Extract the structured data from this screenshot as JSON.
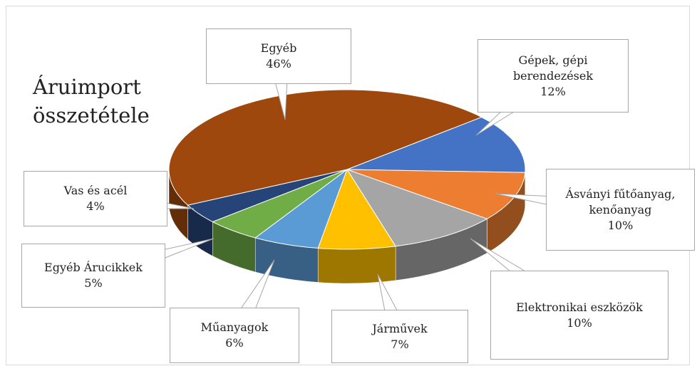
{
  "chart_data": {
    "type": "pie3d",
    "title": "Áruimport összetétele",
    "categories": [
      "Gépek, gépi berendezések",
      "Ásványi fűtőanyag, kenőanyag",
      "Elektronikai eszközök",
      "Járművek",
      "Műanyagok",
      "Egyéb Árucikkek",
      "Vas és acél",
      "Egyéb"
    ],
    "values": [
      12,
      10,
      10,
      7,
      6,
      5,
      4,
      46
    ],
    "value_labels": [
      "12%",
      "10%",
      "10%",
      "7%",
      "6%",
      "5%",
      "4%",
      "46%"
    ],
    "colors": [
      "#4472c4",
      "#ed7d31",
      "#a5a5a5",
      "#ffc000",
      "#5b9bd5",
      "#70ad47",
      "#264478",
      "#9e480e"
    ]
  }
}
